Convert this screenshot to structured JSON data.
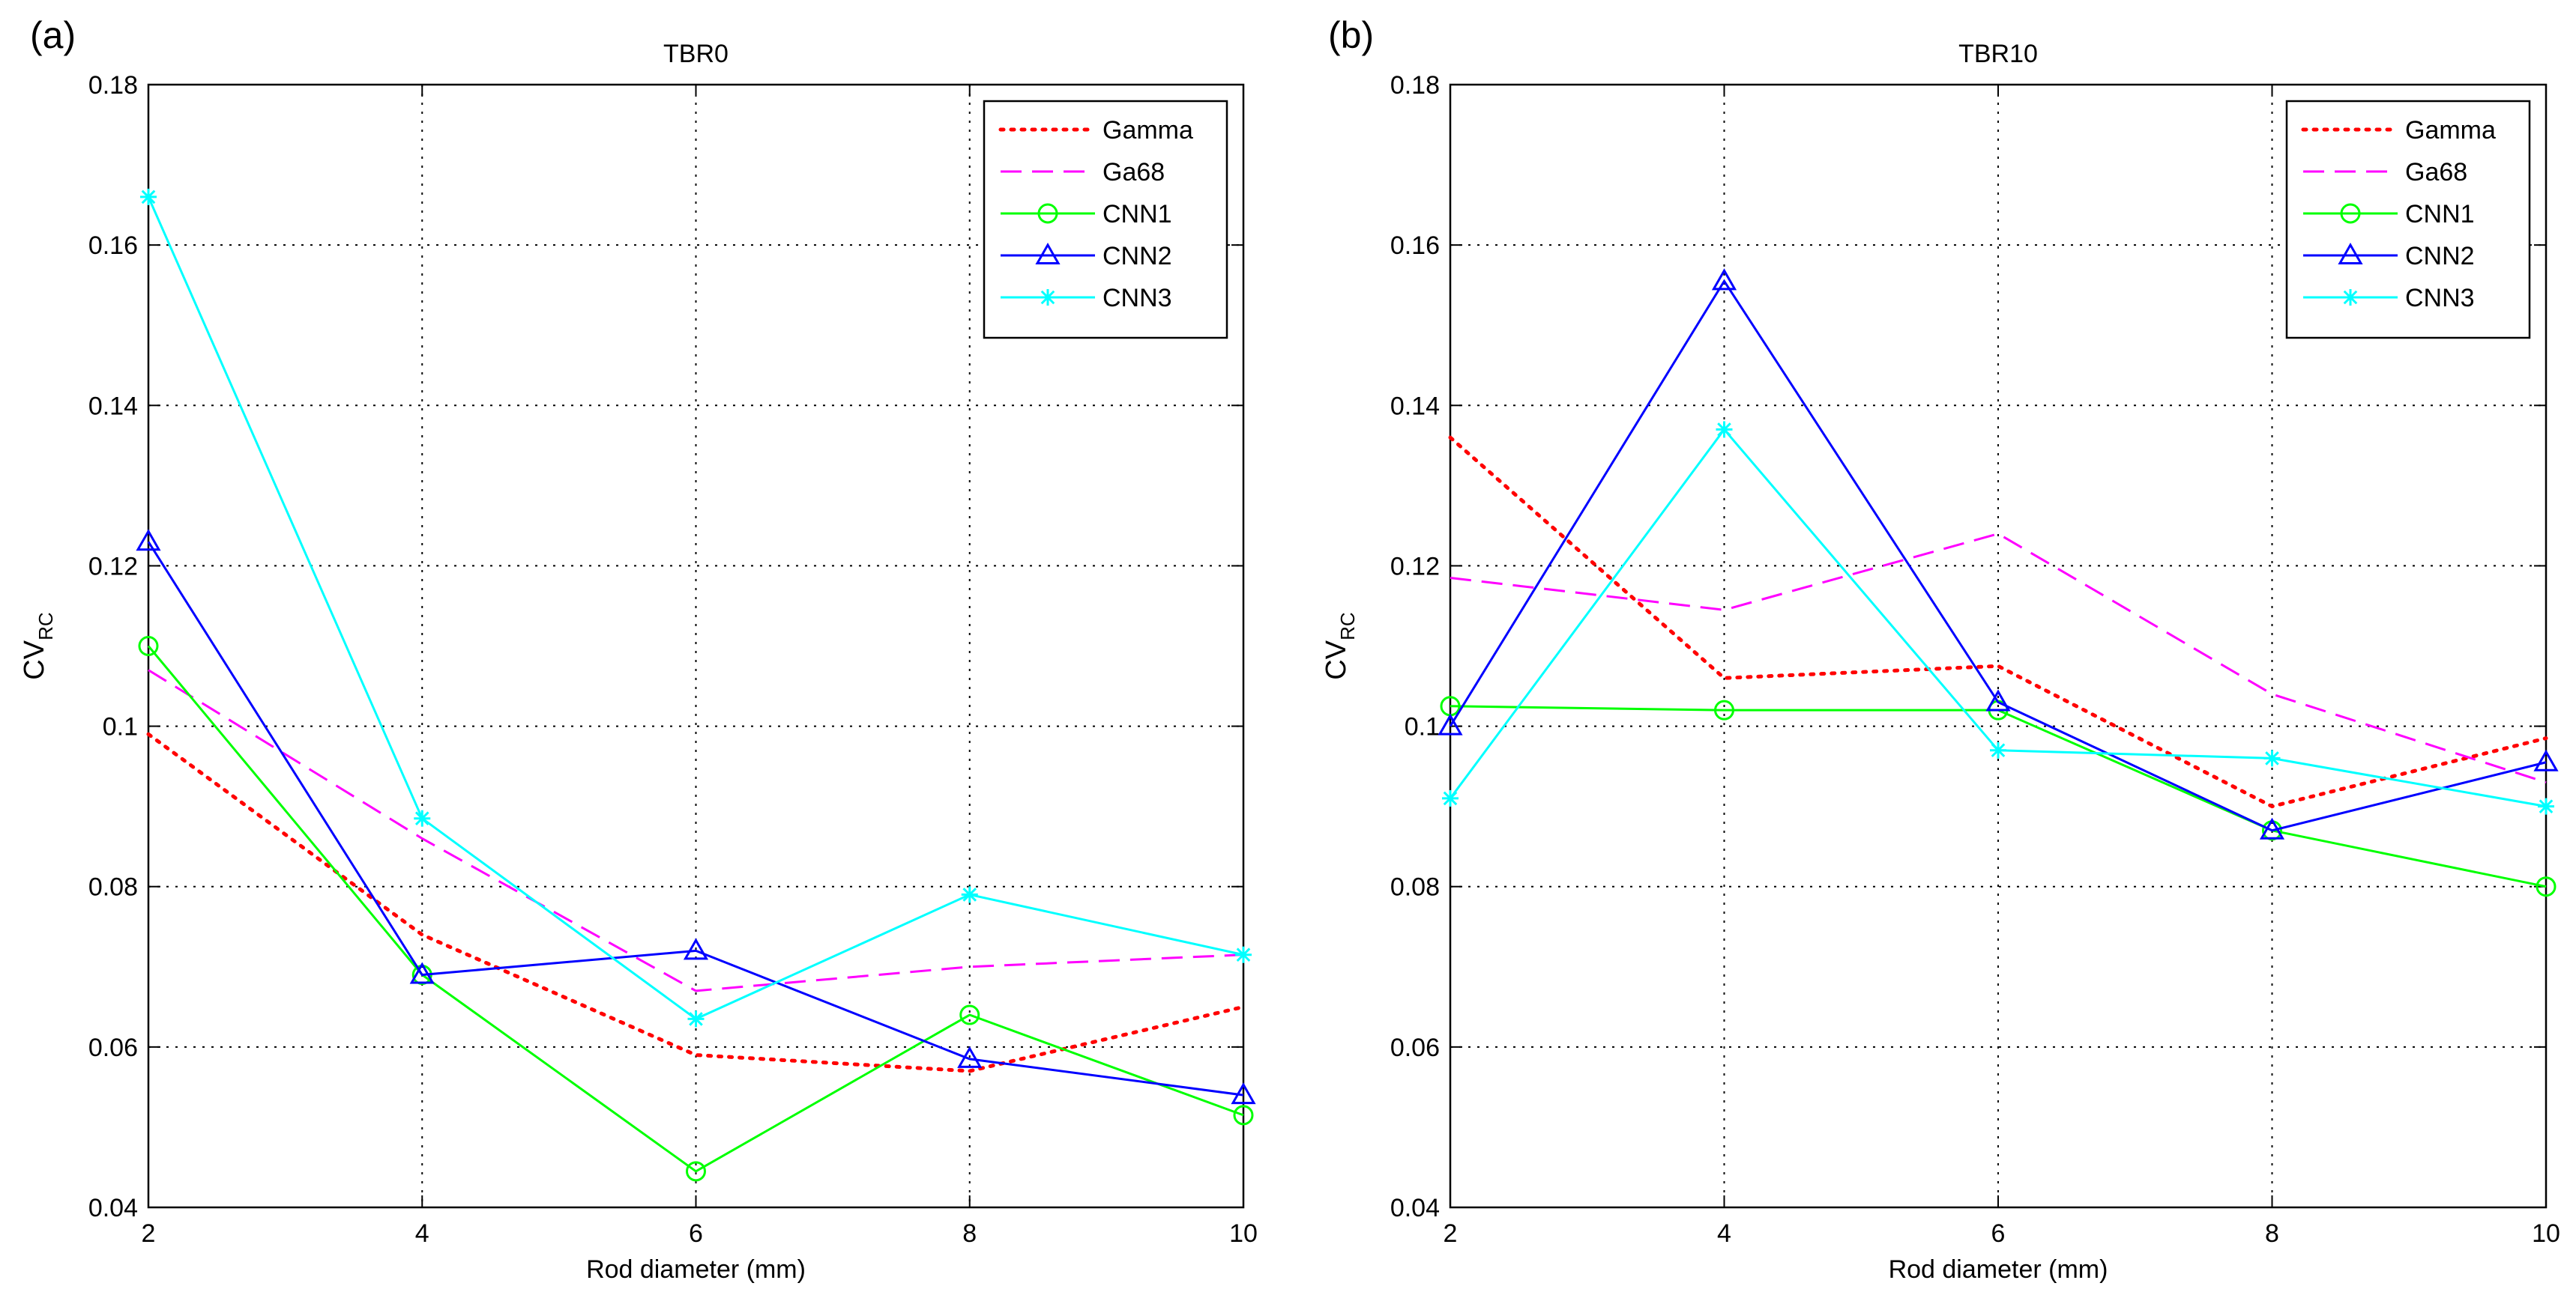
{
  "chart_data": [
    {
      "panel_label": "(a)",
      "type": "line",
      "title": "TBR0",
      "xlabel": "Rod diameter (mm)",
      "ylabel_main": "CV",
      "ylabel_sub": "RC",
      "x": [
        2,
        4,
        6,
        8,
        10
      ],
      "xlim": [
        2,
        10
      ],
      "ylim": [
        0.04,
        0.18
      ],
      "xticks": [
        "2",
        "4",
        "6",
        "8",
        "10"
      ],
      "yticks": [
        "0.04",
        "0.06",
        "0.08",
        "0.1",
        "0.12",
        "0.14",
        "0.16",
        "0.18"
      ],
      "grid": true,
      "legend_position": "top-right",
      "series": [
        {
          "name": "Gamma",
          "color": "#ff0000",
          "dash": "dotted",
          "marker": "none",
          "values": [
            0.099,
            0.074,
            0.059,
            0.057,
            0.065
          ]
        },
        {
          "name": "Ga68",
          "color": "#ff00ff",
          "dash": "dashed",
          "marker": "none",
          "values": [
            0.107,
            0.086,
            0.067,
            0.07,
            0.0715
          ]
        },
        {
          "name": "CNN1",
          "color": "#00ff00",
          "dash": "solid",
          "marker": "circle",
          "values": [
            0.11,
            0.069,
            0.0445,
            0.064,
            0.0515
          ]
        },
        {
          "name": "CNN2",
          "color": "#0000ff",
          "dash": "solid",
          "marker": "triangle",
          "values": [
            0.123,
            0.069,
            0.072,
            0.0585,
            0.054
          ]
        },
        {
          "name": "CNN3",
          "color": "#00ffff",
          "dash": "solid",
          "marker": "star",
          "values": [
            0.166,
            0.0885,
            0.0635,
            0.079,
            0.0715
          ]
        }
      ]
    },
    {
      "panel_label": "(b)",
      "type": "line",
      "title": "TBR10",
      "xlabel": "Rod diameter (mm)",
      "ylabel_main": "CV",
      "ylabel_sub": "RC",
      "x": [
        2,
        4,
        6,
        8,
        10
      ],
      "xlim": [
        2,
        10
      ],
      "ylim": [
        0.04,
        0.18
      ],
      "xticks": [
        "2",
        "4",
        "6",
        "8",
        "10"
      ],
      "yticks": [
        "0.04",
        "0.06",
        "0.08",
        "0.1",
        "0.12",
        "0.14",
        "0.16",
        "0.18"
      ],
      "grid": true,
      "legend_position": "top-right",
      "series": [
        {
          "name": "Gamma",
          "color": "#ff0000",
          "dash": "dotted",
          "marker": "none",
          "values": [
            0.136,
            0.106,
            0.1075,
            0.09,
            0.0985
          ]
        },
        {
          "name": "Ga68",
          "color": "#ff00ff",
          "dash": "dashed",
          "marker": "none",
          "values": [
            0.1185,
            0.1145,
            0.124,
            0.104,
            0.093
          ]
        },
        {
          "name": "CNN1",
          "color": "#00ff00",
          "dash": "solid",
          "marker": "circle",
          "values": [
            0.1025,
            0.102,
            0.102,
            0.087,
            0.08
          ]
        },
        {
          "name": "CNN2",
          "color": "#0000ff",
          "dash": "solid",
          "marker": "triangle",
          "values": [
            0.1,
            0.1555,
            0.103,
            0.087,
            0.0955
          ]
        },
        {
          "name": "CNN3",
          "color": "#00ffff",
          "dash": "solid",
          "marker": "star",
          "values": [
            0.091,
            0.137,
            0.097,
            0.096,
            0.09
          ]
        }
      ]
    }
  ]
}
